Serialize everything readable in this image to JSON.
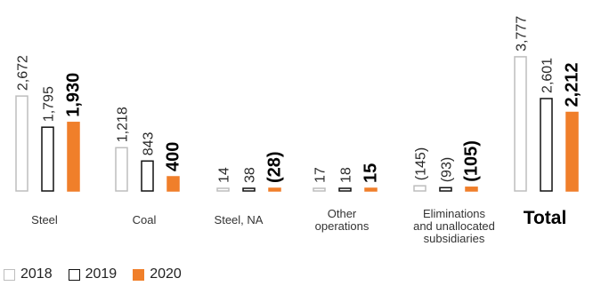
{
  "chart_data": {
    "type": "bar",
    "categories": [
      {
        "label_lines": [
          "Steel"
        ],
        "emphasis": false
      },
      {
        "label_lines": [
          "Coal"
        ],
        "emphasis": false
      },
      {
        "label_lines": [
          "Steel, NA"
        ],
        "emphasis": false
      },
      {
        "label_lines": [
          "Other",
          "operations"
        ],
        "emphasis": false
      },
      {
        "label_lines": [
          "Eliminations",
          "and unallocated",
          "subsidiaries"
        ],
        "emphasis": false
      },
      {
        "label_lines": [
          "Total"
        ],
        "emphasis": true
      }
    ],
    "series": [
      {
        "name": "2018",
        "fill": "#ffffff",
        "stroke": "#bdbdbd",
        "values": [
          2672,
          1218,
          14,
          17,
          -145,
          3777
        ],
        "labels": [
          "2,672",
          "1,218",
          "14",
          "17",
          "(145)",
          "3,777"
        ]
      },
      {
        "name": "2019",
        "fill": "#ffffff",
        "stroke": "#111111",
        "values": [
          1795,
          843,
          38,
          18,
          -93,
          2601
        ],
        "labels": [
          "1,795",
          "843",
          "38",
          "18",
          "(93)",
          "2,601"
        ]
      },
      {
        "name": "2020",
        "fill": "#f07f2a",
        "stroke": "#f07f2a",
        "values": [
          1930,
          400,
          -28,
          15,
          -105,
          2212
        ],
        "labels": [
          "1,930",
          "400",
          "(28)",
          "15",
          "(105)",
          "2,212"
        ]
      }
    ],
    "bold_series": "2020",
    "value_label_orientation": "vertical",
    "bar_direction": "magnitude shown upward from baseline",
    "axes_visible": false,
    "grid": false,
    "legend_position": "bottom-left"
  },
  "legend": {
    "items": [
      {
        "label": "2018",
        "fill": "#ffffff",
        "stroke": "#bdbdbd"
      },
      {
        "label": "2019",
        "fill": "#ffffff",
        "stroke": "#111111"
      },
      {
        "label": "2020",
        "fill": "#f07f2a",
        "stroke": "#f07f2a"
      }
    ]
  }
}
